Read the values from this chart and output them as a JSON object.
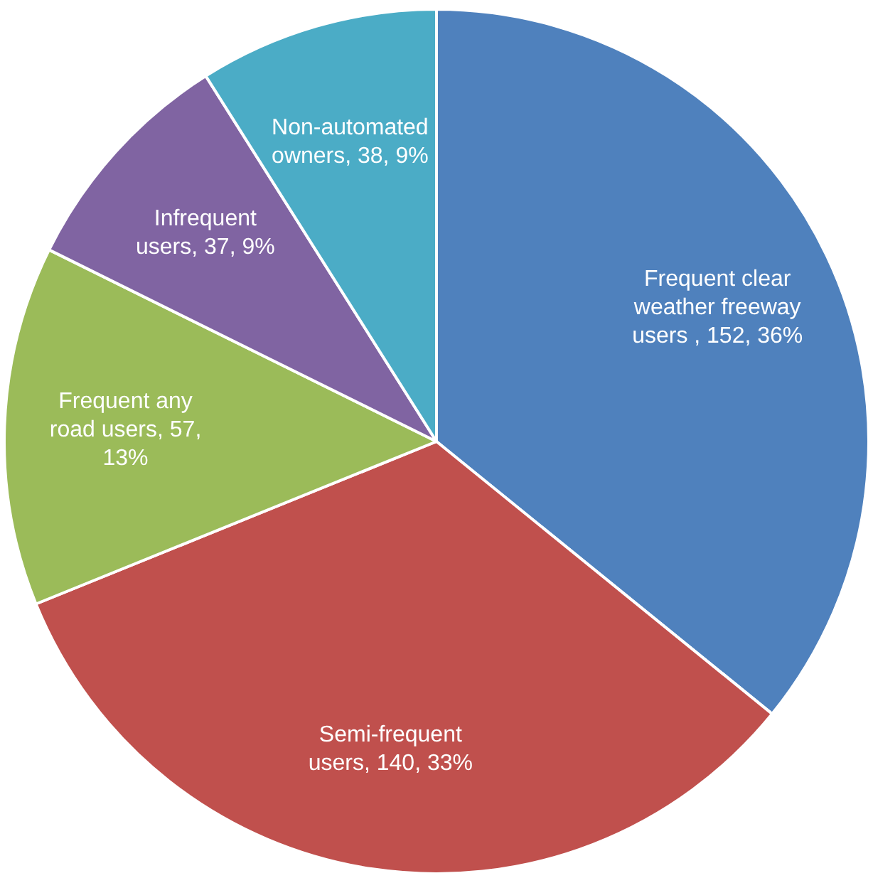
{
  "chart_data": {
    "type": "pie",
    "categories": [
      "Frequent clear weather freeway users ",
      "Semi-frequent users",
      "Frequent any road users",
      "Infrequent users",
      "Non-automated owners"
    ],
    "values": [
      152,
      140,
      57,
      37,
      38
    ],
    "value_labels": [
      "152, 36%",
      "140, 33%",
      "57, 13%",
      "37, 9%",
      "38, 9%"
    ],
    "colors": [
      "#4f81bd",
      "#c0504d",
      "#9bbb59",
      "#8064a2",
      "#4bacc6"
    ],
    "legend": false
  }
}
